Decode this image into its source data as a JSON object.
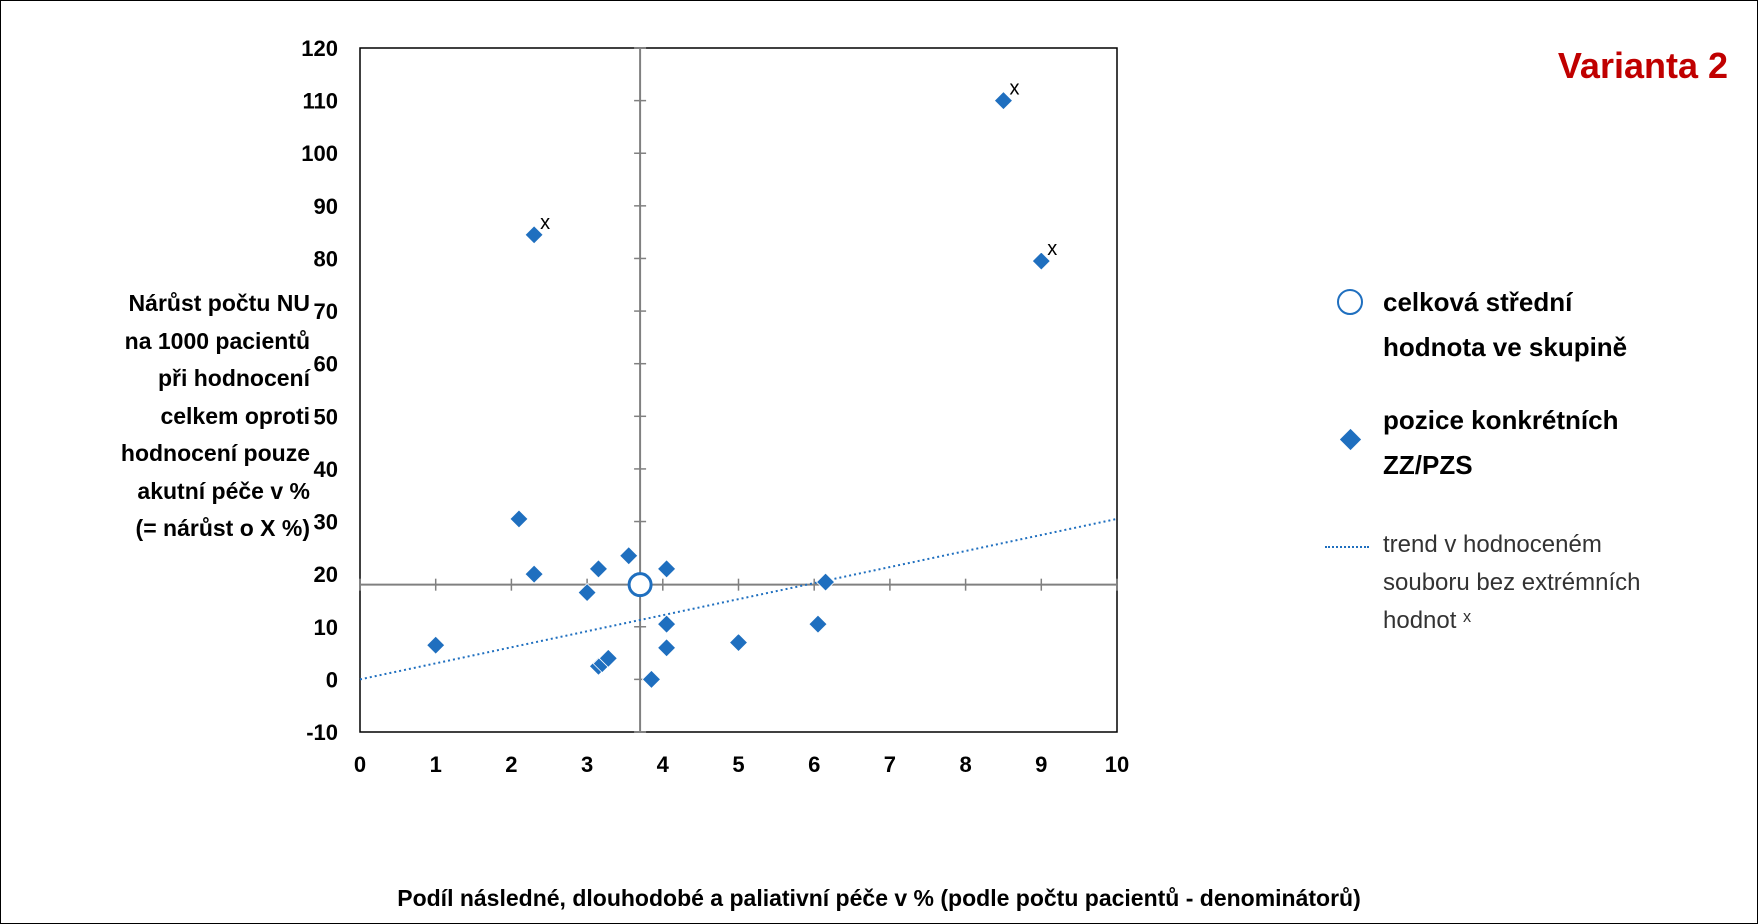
{
  "title": "Varianta 2",
  "chart_data": {
    "type": "scatter",
    "xlabel": "Podíl následné, dlouhodobé a paliativní péče v % (podle počtu pacientů - denominátorů)",
    "ylabel": [
      "Nárůst počtu NU",
      "na 1000 pacientů",
      "při hodnocení",
      "celkem oproti",
      "hodnocení pouze",
      "akutní péče v %",
      "(= nárůst o X %)"
    ],
    "xlim": [
      0,
      10
    ],
    "ylim": [
      -10,
      120
    ],
    "x_ticks": [
      0,
      1,
      2,
      3,
      4,
      5,
      6,
      7,
      8,
      9,
      10
    ],
    "y_ticks": [
      -10,
      0,
      10,
      20,
      30,
      40,
      50,
      60,
      70,
      80,
      90,
      100,
      110,
      120
    ],
    "mean_point": {
      "x": 3.7,
      "y": 18
    },
    "series": [
      {
        "name": "pozice konkrétních ZZ/PZS",
        "points": [
          {
            "x": 1.0,
            "y": 6.5
          },
          {
            "x": 2.1,
            "y": 30.5
          },
          {
            "x": 2.3,
            "y": 20
          },
          {
            "x": 2.3,
            "y": 84.5
          },
          {
            "x": 3.0,
            "y": 16.5
          },
          {
            "x": 3.15,
            "y": 21
          },
          {
            "x": 3.55,
            "y": 23.5
          },
          {
            "x": 3.15,
            "y": 2.5
          },
          {
            "x": 3.2,
            "y": 3
          },
          {
            "x": 3.28,
            "y": 4
          },
          {
            "x": 3.85,
            "y": 0
          },
          {
            "x": 4.05,
            "y": 21
          },
          {
            "x": 4.05,
            "y": 10.5
          },
          {
            "x": 4.05,
            "y": 6
          },
          {
            "x": 5.0,
            "y": 7
          },
          {
            "x": 6.05,
            "y": 10.5
          },
          {
            "x": 6.15,
            "y": 18.5
          },
          {
            "x": 8.5,
            "y": 110
          },
          {
            "x": 9.0,
            "y": 79.5
          }
        ]
      }
    ],
    "extreme_markers": [
      {
        "x": 2.3,
        "y": 84.5,
        "label": "x"
      },
      {
        "x": 8.5,
        "y": 110,
        "label": "x"
      },
      {
        "x": 9.0,
        "y": 79.5,
        "label": "x"
      }
    ],
    "trend": {
      "x": [
        0,
        10
      ],
      "y": [
        0,
        30.5
      ]
    },
    "colors": {
      "marker": "#1f6fbf",
      "title": "#c00000"
    }
  },
  "legend": {
    "mean": [
      "celková střední",
      "hodnota ve skupině"
    ],
    "points": [
      "pozice konkrétních",
      "ZZ/PZS"
    ],
    "trend": [
      "trend v hodnoceném",
      "souboru bez extrémních",
      "hodnot ˣ"
    ]
  }
}
